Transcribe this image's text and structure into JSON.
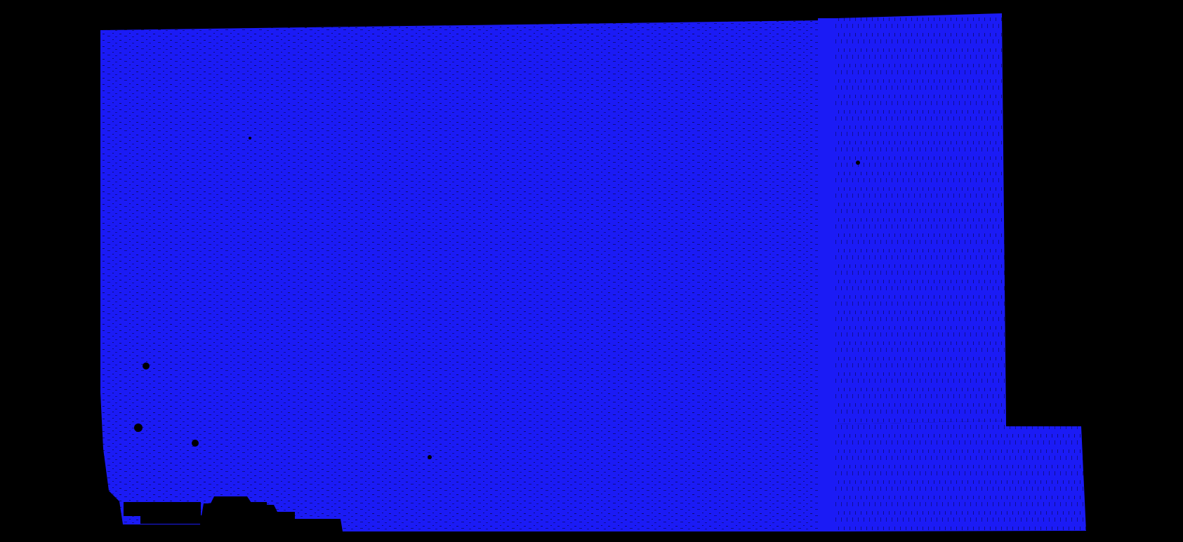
{
  "image": {
    "description_visible_text": "",
    "colors": {
      "background": "#000000",
      "point_cloud": "#1b1bf5",
      "gaps": "#000000"
    }
  }
}
